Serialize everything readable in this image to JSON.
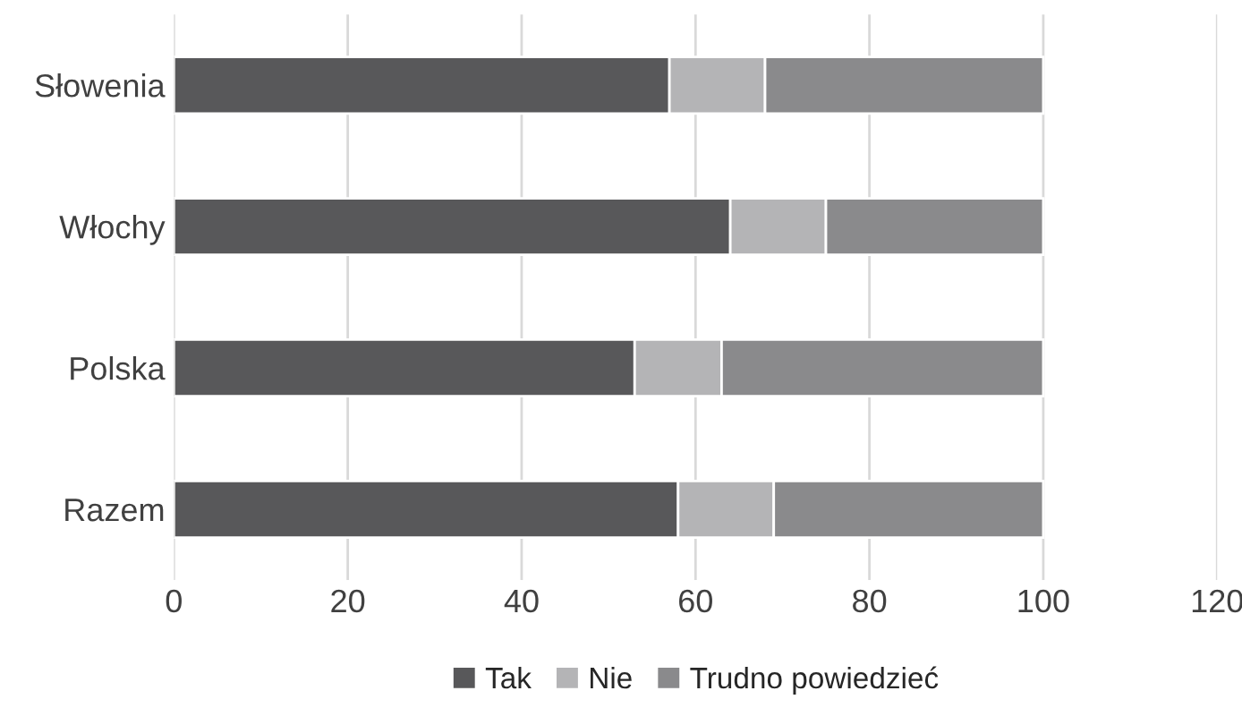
{
  "chart_data": {
    "type": "bar",
    "orientation": "horizontal",
    "stacked": true,
    "categories": [
      "Słowenia",
      "Włochy",
      "Polska",
      "Razem"
    ],
    "series": [
      {
        "name": "Tak",
        "color": "#58585a",
        "values": [
          57,
          64,
          53,
          58
        ]
      },
      {
        "name": "Nie",
        "color": "#b4b4b6",
        "values": [
          11,
          11,
          10,
          11
        ]
      },
      {
        "name": "Trudno powiedzieć",
        "color": "#8a8a8c",
        "values": [
          32,
          25,
          37,
          31
        ]
      }
    ],
    "xlim": [
      0,
      120
    ],
    "xticks": [
      0,
      20,
      40,
      60,
      80,
      100,
      120
    ],
    "grid": "x",
    "legend": "bottom"
  }
}
